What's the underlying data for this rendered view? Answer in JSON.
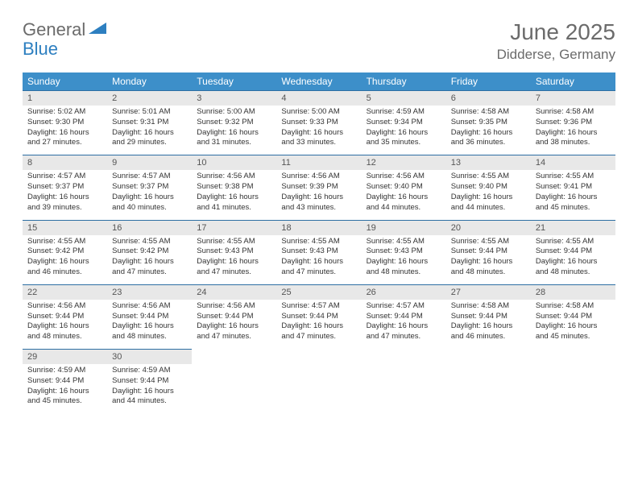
{
  "logo": {
    "part1": "General",
    "part2": "Blue"
  },
  "title": "June 2025",
  "location": "Didderse, Germany",
  "colors": {
    "header_bg": "#3d8fc9",
    "header_text": "#ffffff",
    "daynum_bg": "#e8e8e8",
    "border": "#2d6fa3",
    "logo_gray": "#6b6b6b",
    "logo_blue": "#2d7fc0"
  },
  "weekdays": [
    "Sunday",
    "Monday",
    "Tuesday",
    "Wednesday",
    "Thursday",
    "Friday",
    "Saturday"
  ],
  "weeks": [
    [
      {
        "n": "1",
        "sr": "5:02 AM",
        "ss": "9:30 PM",
        "dl": "16 hours and 27 minutes."
      },
      {
        "n": "2",
        "sr": "5:01 AM",
        "ss": "9:31 PM",
        "dl": "16 hours and 29 minutes."
      },
      {
        "n": "3",
        "sr": "5:00 AM",
        "ss": "9:32 PM",
        "dl": "16 hours and 31 minutes."
      },
      {
        "n": "4",
        "sr": "5:00 AM",
        "ss": "9:33 PM",
        "dl": "16 hours and 33 minutes."
      },
      {
        "n": "5",
        "sr": "4:59 AM",
        "ss": "9:34 PM",
        "dl": "16 hours and 35 minutes."
      },
      {
        "n": "6",
        "sr": "4:58 AM",
        "ss": "9:35 PM",
        "dl": "16 hours and 36 minutes."
      },
      {
        "n": "7",
        "sr": "4:58 AM",
        "ss": "9:36 PM",
        "dl": "16 hours and 38 minutes."
      }
    ],
    [
      {
        "n": "8",
        "sr": "4:57 AM",
        "ss": "9:37 PM",
        "dl": "16 hours and 39 minutes."
      },
      {
        "n": "9",
        "sr": "4:57 AM",
        "ss": "9:37 PM",
        "dl": "16 hours and 40 minutes."
      },
      {
        "n": "10",
        "sr": "4:56 AM",
        "ss": "9:38 PM",
        "dl": "16 hours and 41 minutes."
      },
      {
        "n": "11",
        "sr": "4:56 AM",
        "ss": "9:39 PM",
        "dl": "16 hours and 43 minutes."
      },
      {
        "n": "12",
        "sr": "4:56 AM",
        "ss": "9:40 PM",
        "dl": "16 hours and 44 minutes."
      },
      {
        "n": "13",
        "sr": "4:55 AM",
        "ss": "9:40 PM",
        "dl": "16 hours and 44 minutes."
      },
      {
        "n": "14",
        "sr": "4:55 AM",
        "ss": "9:41 PM",
        "dl": "16 hours and 45 minutes."
      }
    ],
    [
      {
        "n": "15",
        "sr": "4:55 AM",
        "ss": "9:42 PM",
        "dl": "16 hours and 46 minutes."
      },
      {
        "n": "16",
        "sr": "4:55 AM",
        "ss": "9:42 PM",
        "dl": "16 hours and 47 minutes."
      },
      {
        "n": "17",
        "sr": "4:55 AM",
        "ss": "9:43 PM",
        "dl": "16 hours and 47 minutes."
      },
      {
        "n": "18",
        "sr": "4:55 AM",
        "ss": "9:43 PM",
        "dl": "16 hours and 47 minutes."
      },
      {
        "n": "19",
        "sr": "4:55 AM",
        "ss": "9:43 PM",
        "dl": "16 hours and 48 minutes."
      },
      {
        "n": "20",
        "sr": "4:55 AM",
        "ss": "9:44 PM",
        "dl": "16 hours and 48 minutes."
      },
      {
        "n": "21",
        "sr": "4:55 AM",
        "ss": "9:44 PM",
        "dl": "16 hours and 48 minutes."
      }
    ],
    [
      {
        "n": "22",
        "sr": "4:56 AM",
        "ss": "9:44 PM",
        "dl": "16 hours and 48 minutes."
      },
      {
        "n": "23",
        "sr": "4:56 AM",
        "ss": "9:44 PM",
        "dl": "16 hours and 48 minutes."
      },
      {
        "n": "24",
        "sr": "4:56 AM",
        "ss": "9:44 PM",
        "dl": "16 hours and 47 minutes."
      },
      {
        "n": "25",
        "sr": "4:57 AM",
        "ss": "9:44 PM",
        "dl": "16 hours and 47 minutes."
      },
      {
        "n": "26",
        "sr": "4:57 AM",
        "ss": "9:44 PM",
        "dl": "16 hours and 47 minutes."
      },
      {
        "n": "27",
        "sr": "4:58 AM",
        "ss": "9:44 PM",
        "dl": "16 hours and 46 minutes."
      },
      {
        "n": "28",
        "sr": "4:58 AM",
        "ss": "9:44 PM",
        "dl": "16 hours and 45 minutes."
      }
    ],
    [
      {
        "n": "29",
        "sr": "4:59 AM",
        "ss": "9:44 PM",
        "dl": "16 hours and 45 minutes."
      },
      {
        "n": "30",
        "sr": "4:59 AM",
        "ss": "9:44 PM",
        "dl": "16 hours and 44 minutes."
      },
      null,
      null,
      null,
      null,
      null
    ]
  ],
  "labels": {
    "sunrise": "Sunrise:",
    "sunset": "Sunset:",
    "daylight": "Daylight:"
  }
}
